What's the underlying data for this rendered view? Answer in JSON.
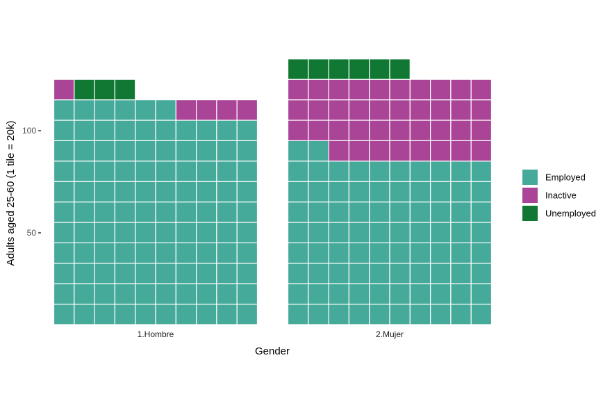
{
  "chart_data": {
    "type": "waffle",
    "ylabel": "Adults aged 25-60 (1 tile = 20k)",
    "xlabel": "Gender",
    "yticks": [
      50,
      100
    ],
    "ylim": [
      0,
      130
    ],
    "columns_per_row": 10,
    "grid": false,
    "legend_position": "right",
    "facets": [
      {
        "name": "1.Hombre",
        "counts": {
          "Employed": 106,
          "Inactive": 5,
          "Unemployed": 3
        }
      },
      {
        "name": "2.Mujer",
        "counts": {
          "Employed": 82,
          "Inactive": 38,
          "Unemployed": 6
        }
      }
    ],
    "series": [
      {
        "name": "Employed",
        "color": "#45AA9A"
      },
      {
        "name": "Inactive",
        "color": "#AA4497"
      },
      {
        "name": "Unemployed",
        "color": "#107832"
      }
    ]
  }
}
